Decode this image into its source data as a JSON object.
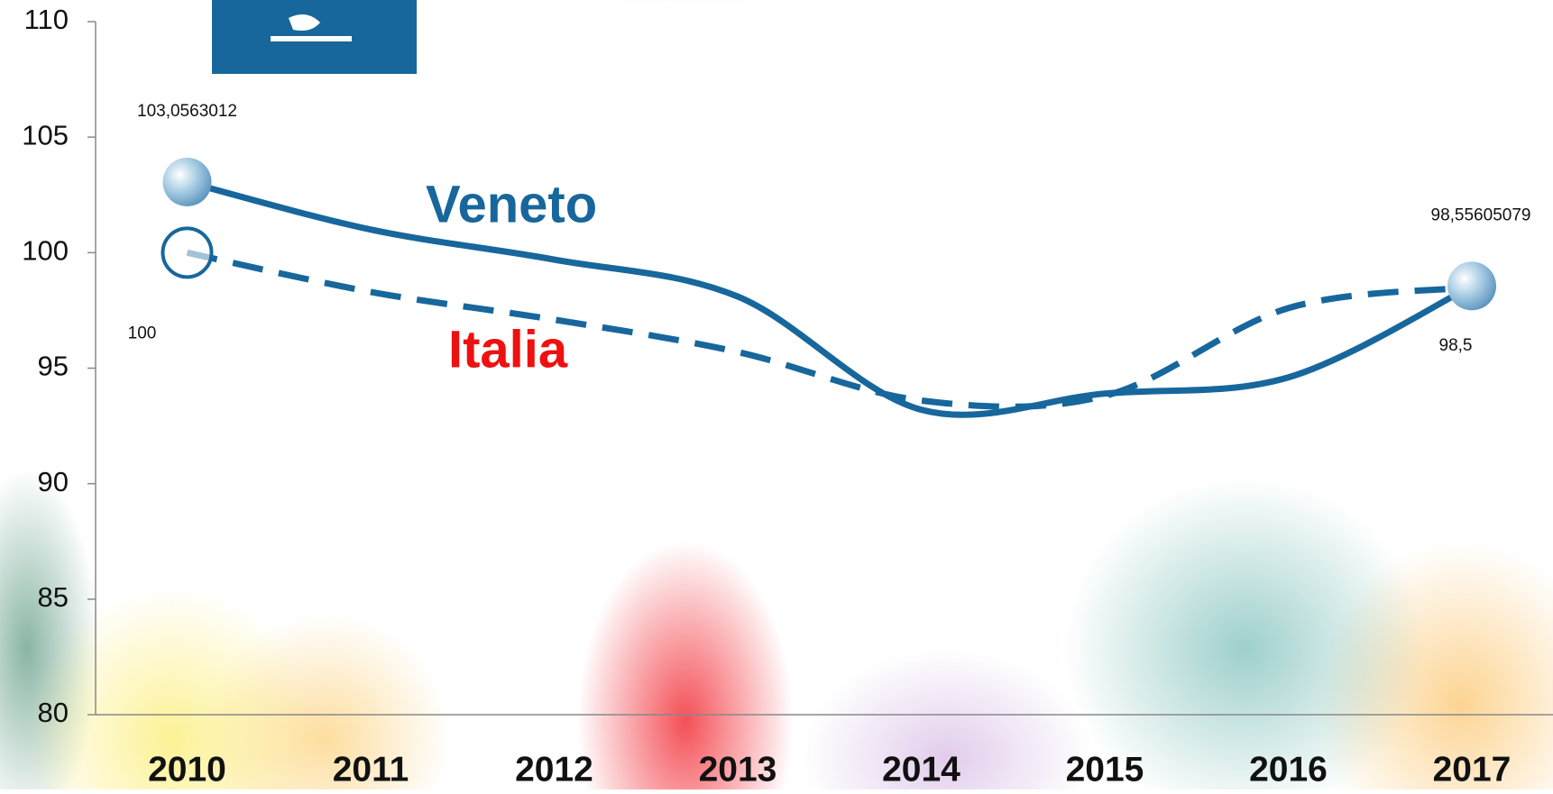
{
  "chart_data": {
    "type": "line",
    "categories": [
      "2010",
      "2011",
      "2012",
      "2013",
      "2014",
      "2015",
      "2016",
      "2017"
    ],
    "series": [
      {
        "name": "Veneto",
        "color": "#17679c",
        "values": [
          103.0563012,
          101,
          99.7,
          98.1,
          93.2,
          93.9,
          94.6,
          98.55605079
        ],
        "value_labels": [
          "103,0563012",
          null,
          null,
          null,
          null,
          null,
          null,
          "98,55605079"
        ]
      },
      {
        "name": "Italia",
        "color": "#ee1111",
        "values": [
          100,
          98.3,
          97.1,
          95.7,
          93.6,
          93.8,
          97.6,
          98.5
        ],
        "value_labels": [
          "100",
          null,
          null,
          null,
          null,
          null,
          null,
          "98,5"
        ]
      }
    ],
    "ylim": [
      80,
      110
    ],
    "yticks": [
      80,
      85,
      90,
      95,
      100,
      105,
      110
    ],
    "grid": false
  }
}
